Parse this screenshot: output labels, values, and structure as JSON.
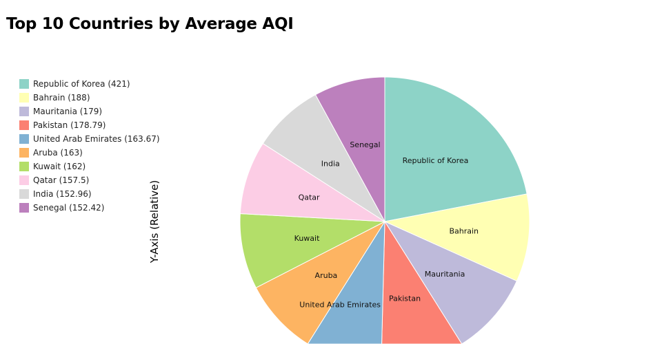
{
  "chart_data": {
    "type": "pie",
    "title": "Top 10 Countries by Average AQI",
    "ylabel": "Y-Axis (Relative)",
    "legend_position": "left",
    "slices": [
      {
        "label": "Republic of Korea",
        "value": 421,
        "legend": "Republic of Korea (421)",
        "color": "#8dd3c7"
      },
      {
        "label": "Bahrain",
        "value": 188,
        "legend": "Bahrain (188)",
        "color": "#ffffb3"
      },
      {
        "label": "Mauritania",
        "value": 179,
        "legend": "Mauritania (179)",
        "color": "#bebada"
      },
      {
        "label": "Pakistan",
        "value": 178.79,
        "legend": "Pakistan (178.79)",
        "color": "#fb8072"
      },
      {
        "label": "United Arab Emirates",
        "value": 163.67,
        "legend": "United Arab Emirates (163.67)",
        "color": "#80b1d3"
      },
      {
        "label": "Aruba",
        "value": 163,
        "legend": "Aruba (163)",
        "color": "#fdb462"
      },
      {
        "label": "Kuwait",
        "value": 162,
        "legend": "Kuwait (162)",
        "color": "#b3de69"
      },
      {
        "label": "Qatar",
        "value": 157.5,
        "legend": "Qatar (157.5)",
        "color": "#fccde5"
      },
      {
        "label": "India",
        "value": 152.96,
        "legend": "India (152.96)",
        "color": "#d9d9d9"
      },
      {
        "label": "Senegal",
        "value": 152.42,
        "legend": "Senegal (152.42)",
        "color": "#bc80bd"
      }
    ]
  }
}
